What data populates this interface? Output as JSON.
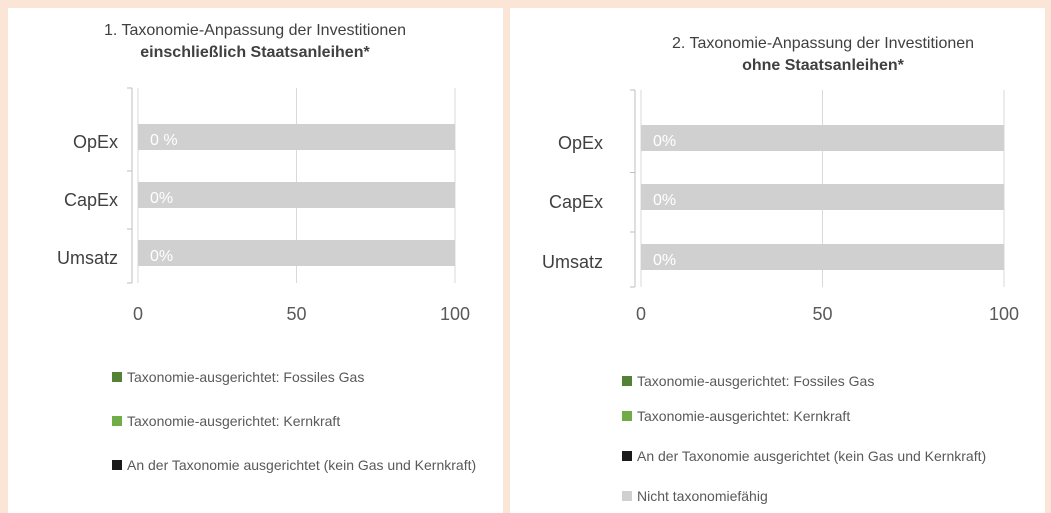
{
  "chart_data": [
    {
      "type": "bar",
      "orientation": "horizontal",
      "stacked": true,
      "title": "1. Taxonomie-Anpassung der Investitionen",
      "subtitle": "einschließlich Staatsanleihen*",
      "categories": [
        "OpEx",
        "CapEx",
        "Umsatz"
      ],
      "series": [
        {
          "name": "Taxonomie-ausgerichtet: Fossiles Gas",
          "color": "#548235",
          "values": [
            0,
            0,
            0
          ]
        },
        {
          "name": "Taxonomie-ausgerichtet: Kernkraft",
          "color": "#70ad47",
          "values": [
            0,
            0,
            0
          ]
        },
        {
          "name": "An der Taxonomie ausgerichtet (kein Gas und Kernkraft)",
          "color": "#1a1a1a",
          "values": [
            0,
            0,
            0
          ],
          "value_labels": [
            "0 %",
            "0%",
            "0%"
          ]
        },
        {
          "color": "#d0d0d0",
          "values": [
            100,
            100,
            100
          ]
        }
      ],
      "xlim": [
        0,
        100
      ],
      "xticks": [
        0,
        50,
        100
      ],
      "grid": true
    },
    {
      "type": "bar",
      "orientation": "horizontal",
      "stacked": true,
      "title": "2. Taxonomie-Anpassung der Investitionen",
      "subtitle": "ohne Staatsanleihen*",
      "categories": [
        "OpEx",
        "CapEx",
        "Umsatz"
      ],
      "series": [
        {
          "name": "Taxonomie-ausgerichtet: Fossiles Gas",
          "color": "#548235",
          "values": [
            0,
            0,
            0
          ]
        },
        {
          "name": "Taxonomie-ausgerichtet: Kernkraft",
          "color": "#70ad47",
          "values": [
            0,
            0,
            0
          ]
        },
        {
          "name": "An der Taxonomie ausgerichtet (kein Gas und Kernkraft)",
          "color": "#1a1a1a",
          "values": [
            0,
            0,
            0
          ],
          "value_labels": [
            "0%",
            "0%",
            "0%"
          ]
        },
        {
          "name": "Nicht taxonomiefähig",
          "color": "#d0d0d0",
          "values": [
            100,
            100,
            100
          ]
        }
      ],
      "xlim": [
        0,
        100
      ],
      "xticks": [
        0,
        50,
        100
      ],
      "grid": true
    }
  ]
}
